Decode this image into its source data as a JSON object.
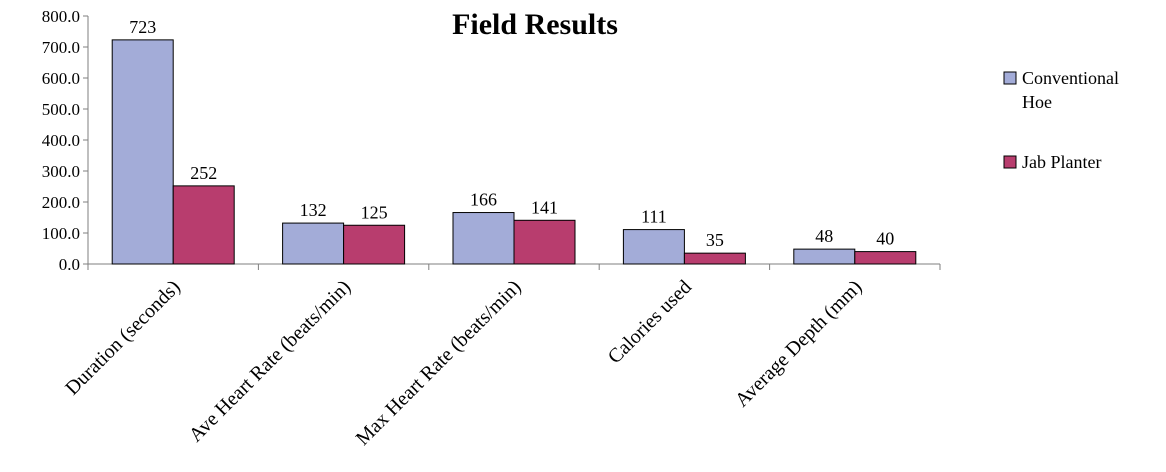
{
  "chart_data": {
    "type": "bar",
    "title": "Field Results",
    "xlabel": "",
    "ylabel": "",
    "ylim": [
      0,
      800
    ],
    "yticks": [
      "0.0",
      "100.0",
      "200.0",
      "300.0",
      "400.0",
      "500.0",
      "600.0",
      "700.0",
      "800.0"
    ],
    "grid": false,
    "legend_position": "right",
    "categories": [
      "Duration (seconds)",
      "Ave Heart Rate (beats/min)",
      "Max Heart Rate (beats/min)",
      "Calories used",
      "Average Depth (mm)"
    ],
    "series": [
      {
        "name": "Conventional Hoe",
        "legend_lines": [
          "Conventional",
          "Hoe"
        ],
        "color": "#a3acd8",
        "values": [
          723,
          132,
          166,
          111,
          48
        ]
      },
      {
        "name": "Jab Planter",
        "legend_lines": [
          "Jab Planter"
        ],
        "color": "#b83d6e",
        "values": [
          252,
          125,
          141,
          35,
          40
        ]
      }
    ]
  }
}
